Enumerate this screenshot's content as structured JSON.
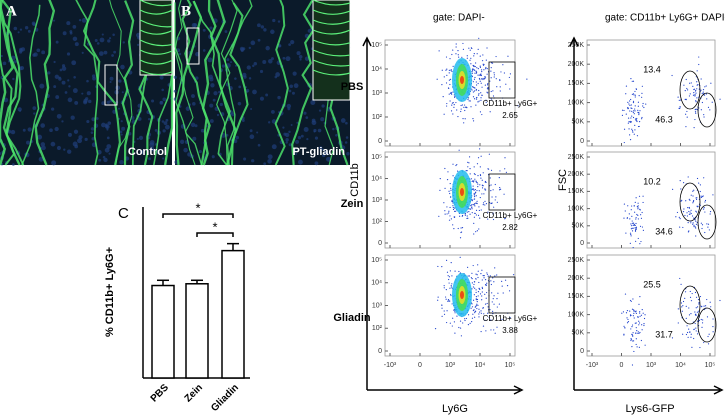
{
  "panels": {
    "a": {
      "letter": "A",
      "caption": "Control"
    },
    "b": {
      "letter": "B",
      "caption": "PT-gliadin"
    }
  },
  "chart_data": {
    "type": "bar",
    "panel_label": "C",
    "y_label": "% CD11b+ Ly6G+",
    "categories": [
      "PBS",
      "Zein",
      "Gliadin"
    ],
    "values": [
      2.65,
      2.7,
      3.65
    ],
    "errors": [
      0.15,
      0.1,
      0.2
    ],
    "ylim": [
      0,
      4.9
    ],
    "color": "#ffffff",
    "annotations": [
      "*",
      "*"
    ]
  },
  "flow": {
    "gates": [
      "gate: DAPI-",
      "gate: CD11b+ Ly6G+ DAPI-"
    ],
    "rows": [
      "PBS",
      "Zein",
      "Gliadin"
    ],
    "gate_label": "CD11b+ Ly6G+",
    "left_values": [
      2.65,
      2.82,
      3.88
    ],
    "right_values": [
      [
        13.4,
        46.3
      ],
      [
        10.2,
        34.6
      ],
      [
        25.5,
        31.7
      ]
    ],
    "left_axis": {
      "x_label": "Ly6G",
      "y_label": "CD11b",
      "xticks": [
        "-10³",
        "0",
        "10³",
        "10⁴",
        "10⁵"
      ],
      "yticks": [
        "10⁵",
        "10⁴",
        "10³",
        "10²",
        "0"
      ]
    },
    "right_axis": {
      "x_label": "Lys6-GFP",
      "y_label": "FSC",
      "xticks": [
        "-10³",
        "0",
        "10³",
        "10⁴",
        "10⁵"
      ],
      "yticks": [
        "250K",
        "200K",
        "150K",
        "100K",
        "50K",
        "0"
      ]
    }
  }
}
